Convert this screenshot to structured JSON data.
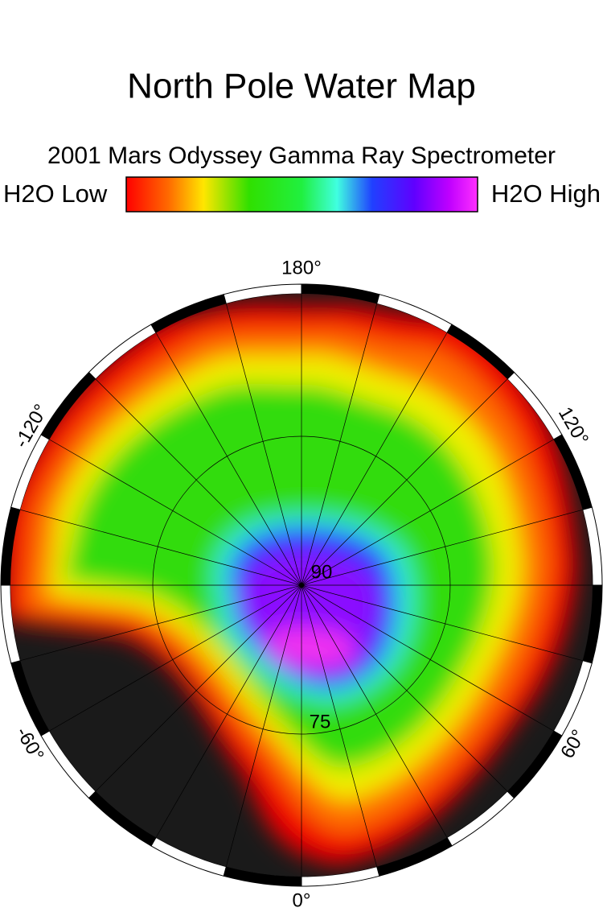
{
  "title": "North Pole Water Map",
  "subtitle": "2001 Mars Odyssey Gamma Ray Spectrometer",
  "colorbar": {
    "low_label": "H2O Low",
    "high_label": "H2O High"
  },
  "longitude_labels": {
    "top": "180°",
    "bottom": "0°",
    "upper_left": "-120°",
    "upper_right": "120°",
    "lower_left": "-60°",
    "lower_right": "60°"
  },
  "latitude_labels": {
    "pole": "90",
    "ring": "75"
  }
}
